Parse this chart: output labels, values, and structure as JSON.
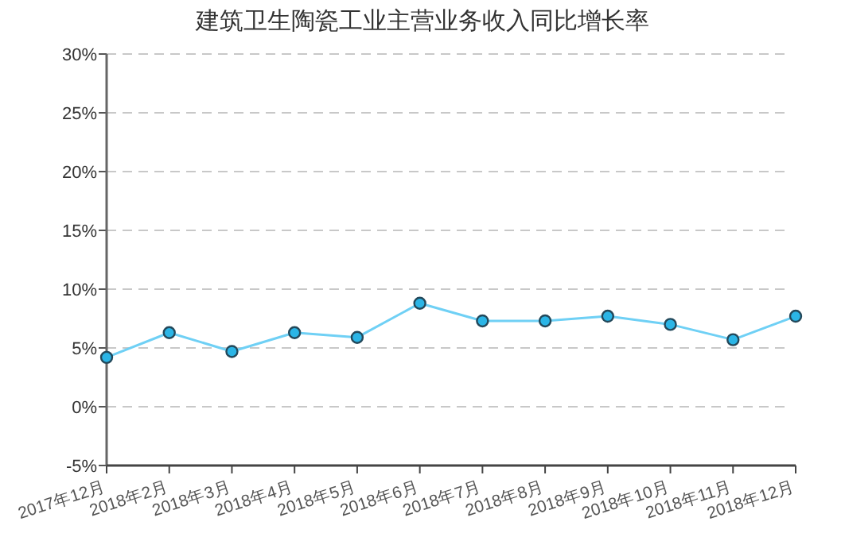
{
  "chart_data": {
    "type": "line",
    "title": "建筑卫生陶瓷工业主营业务收入同比增长率",
    "categories": [
      "2017年12月",
      "2018年2月",
      "2018年3月",
      "2018年4月",
      "2018年5月",
      "2018年6月",
      "2018年7月",
      "2018年8月",
      "2018年9月",
      "2018年10月",
      "2018年11月",
      "2018年12月"
    ],
    "series": [
      {
        "color": "#6fd0f5",
        "values": [
          4.2,
          6.3,
          4.7,
          6.3,
          5.9,
          8.8,
          7.3,
          7.3,
          7.7,
          7.0,
          5.7,
          7.7
        ]
      }
    ],
    "ylim": [
      -5,
      30
    ],
    "yticks": [
      {
        "value": -5,
        "label": "-5%"
      },
      {
        "value": 0,
        "label": "0%"
      },
      {
        "value": 5,
        "label": "5%"
      },
      {
        "value": 10,
        "label": "10%"
      },
      {
        "value": 15,
        "label": "15%"
      },
      {
        "value": 20,
        "label": "20%"
      },
      {
        "value": 25,
        "label": "25%"
      },
      {
        "value": 30,
        "label": "30%"
      }
    ],
    "grid": "y",
    "marker": "circle",
    "line_style": "solid"
  }
}
